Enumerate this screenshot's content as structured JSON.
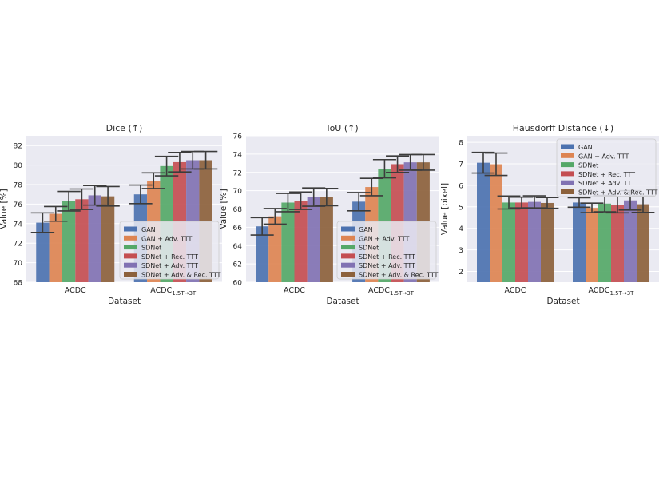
{
  "figure": {
    "background": "#ffffff",
    "plot_background": "#eaeaf2",
    "grid_color": "#ffffff",
    "errorbar_color": "#3c3c3c"
  },
  "series_colors": [
    "#4c72b0",
    "#dd8452",
    "#55a868",
    "#c44e52",
    "#8172b3",
    "#8c613c"
  ],
  "chart_data": [
    {
      "type": "bar",
      "title": "Dice (↑)",
      "xlabel": "Dataset",
      "ylabel": "Value [%]",
      "ylim": [
        68,
        83
      ],
      "yticks": [
        68,
        70,
        72,
        74,
        76,
        78,
        80,
        82
      ],
      "categories": [
        "ACDC",
        "ACDC_1.5T→3T"
      ],
      "category_labels": [
        {
          "main": "ACDC",
          "sub": ""
        },
        {
          "main": "ACDC",
          "sub": "1.5T→3T"
        }
      ],
      "legend_position": "lower-right",
      "grid": true,
      "series": [
        {
          "name": "GAN",
          "values": [
            74.1,
            77.0
          ],
          "errors": [
            1.0,
            0.95
          ]
        },
        {
          "name": "GAN + Adv. TTT",
          "values": [
            75.0,
            78.4
          ],
          "errors": [
            0.75,
            0.8
          ]
        },
        {
          "name": "SDNet",
          "values": [
            76.3,
            79.9
          ],
          "errors": [
            1.0,
            1.0
          ]
        },
        {
          "name": "SDNet + Rec. TTT",
          "values": [
            76.5,
            80.3
          ],
          "errors": [
            1.05,
            1.0
          ]
        },
        {
          "name": "SDNet + Adv. TTT",
          "values": [
            76.9,
            80.5
          ],
          "errors": [
            1.0,
            0.9
          ]
        },
        {
          "name": "SDNet + Adv. & Rec. TTT",
          "values": [
            76.8,
            80.5
          ],
          "errors": [
            1.0,
            0.9
          ]
        }
      ]
    },
    {
      "type": "bar",
      "title": "IoU (↑)",
      "xlabel": "Dataset",
      "ylabel": "Value [%]",
      "ylim": [
        60,
        76
      ],
      "yticks": [
        60,
        62,
        64,
        66,
        68,
        70,
        72,
        74,
        76
      ],
      "categories": [
        "ACDC",
        "ACDC_1.5T→3T"
      ],
      "category_labels": [
        {
          "main": "ACDC",
          "sub": ""
        },
        {
          "main": "ACDC",
          "sub": "1.5T→3T"
        }
      ],
      "legend_position": "lower-right",
      "grid": true,
      "series": [
        {
          "name": "GAN",
          "values": [
            66.1,
            68.8
          ],
          "errors": [
            0.95,
            1.0
          ]
        },
        {
          "name": "GAN + Adv. TTT",
          "values": [
            67.2,
            70.4
          ],
          "errors": [
            0.85,
            0.95
          ]
        },
        {
          "name": "SDNet",
          "values": [
            68.7,
            72.4
          ],
          "errors": [
            1.0,
            1.0
          ]
        },
        {
          "name": "SDNet + Rec. TTT",
          "values": [
            68.9,
            72.9
          ],
          "errors": [
            0.95,
            0.9
          ]
        },
        {
          "name": "SDNet + Adv. TTT",
          "values": [
            69.3,
            73.1
          ],
          "errors": [
            1.0,
            0.85
          ]
        },
        {
          "name": "SDNet + Adv. & Rec. TTT",
          "values": [
            69.3,
            73.1
          ],
          "errors": [
            0.95,
            0.85
          ]
        }
      ]
    },
    {
      "type": "bar",
      "title": "Hausdorff Distance (↓)",
      "xlabel": "Dataset",
      "ylabel": "Value [pixel]",
      "ylim": [
        1.5,
        8.3
      ],
      "yticks": [
        2,
        3,
        4,
        5,
        6,
        7,
        8
      ],
      "categories": [
        "ACDC",
        "ACDC_1.5T→3T"
      ],
      "category_labels": [
        {
          "main": "ACDC",
          "sub": ""
        },
        {
          "main": "ACDC",
          "sub": "1.5T→3T"
        }
      ],
      "legend_position": "upper-right",
      "grid": true,
      "series": [
        {
          "name": "GAN",
          "values": [
            7.05,
            5.2
          ],
          "errors": [
            0.48,
            0.22
          ]
        },
        {
          "name": "GAN + Adv. TTT",
          "values": [
            6.98,
            4.95
          ],
          "errors": [
            0.52,
            0.22
          ]
        },
        {
          "name": "SDNet",
          "values": [
            5.2,
            5.15
          ],
          "errors": [
            0.3,
            0.38
          ]
        },
        {
          "name": "SDNet + Rec. TTT",
          "values": [
            5.2,
            5.1
          ],
          "errors": [
            0.25,
            0.38
          ]
        },
        {
          "name": "SDNet + Adv. TTT",
          "values": [
            5.23,
            5.3
          ],
          "errors": [
            0.28,
            0.45
          ]
        },
        {
          "name": "SDNet + Adv. & Rec. TTT",
          "values": [
            5.18,
            5.12
          ],
          "errors": [
            0.25,
            0.38
          ]
        }
      ]
    }
  ]
}
